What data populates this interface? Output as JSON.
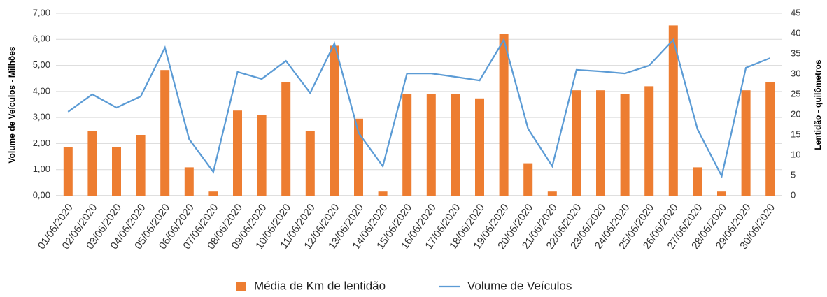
{
  "chart_data": {
    "type": "bar_line",
    "y_label": "Volume de Veículos  - Milhões",
    "y2_label": "Lentidão - quilômetros",
    "categories": [
      "01/06/2020",
      "02/06/2020",
      "03/06/2020",
      "04/06/2020",
      "05/06/2020",
      "06/06/2020",
      "07/06/2020",
      "08/06/2020",
      "09/06/2020",
      "10/06/2020",
      "11/06/2020",
      "12/06/2020",
      "13/06/2020",
      "14/06/2020",
      "15/06/2020",
      "16/06/2020",
      "17/06/2020",
      "18/06/2020",
      "19/06/2020",
      "20/06/2020",
      "21/06/2020",
      "22/06/2020",
      "23/06/2020",
      "24/06/2020",
      "25/06/2020",
      "26/06/2020",
      "27/06/2020",
      "28/06/2020",
      "29/06/2020",
      "30/06/2020"
    ],
    "series": [
      {
        "name": "Média de Km de lentidão",
        "type": "bar",
        "axis": "y2",
        "color": "#ed7d31",
        "values": [
          12,
          16,
          12,
          15,
          31,
          7,
          1,
          21,
          20,
          28,
          16,
          37,
          19,
          1,
          25,
          25,
          25,
          24,
          40,
          8,
          1,
          26,
          26,
          25,
          27,
          42,
          7,
          1,
          26,
          28
        ]
      },
      {
        "name": "Volume de Veículos",
        "type": "line",
        "axis": "y",
        "color": "#5b9bd5",
        "values": [
          3.22,
          3.89,
          3.38,
          3.81,
          5.68,
          2.17,
          0.91,
          4.75,
          4.48,
          5.17,
          3.94,
          5.84,
          2.41,
          1.13,
          4.69,
          4.69,
          4.56,
          4.42,
          5.98,
          2.57,
          1.13,
          4.83,
          4.77,
          4.69,
          4.99,
          5.98,
          2.55,
          0.75,
          4.91,
          5.28
        ]
      }
    ],
    "ylim": [
      0,
      7
    ],
    "yticks": [
      {
        "value": 0,
        "label": "0,00"
      },
      {
        "value": 1,
        "label": "1,00"
      },
      {
        "value": 2,
        "label": "2,00"
      },
      {
        "value": 3,
        "label": "3,00"
      },
      {
        "value": 4,
        "label": "4,00"
      },
      {
        "value": 5,
        "label": "5,00"
      },
      {
        "value": 6,
        "label": "6,00"
      },
      {
        "value": 7,
        "label": "7,00"
      }
    ],
    "y2lim": [
      0,
      45
    ],
    "y2ticks": [
      0,
      5,
      10,
      15,
      20,
      25,
      30,
      35,
      40,
      45
    ],
    "grid": true
  }
}
